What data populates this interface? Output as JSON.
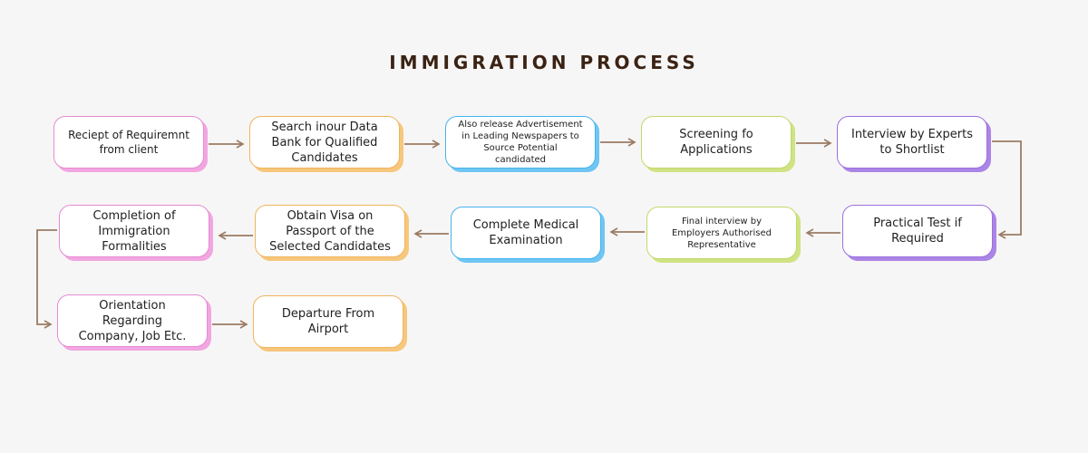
{
  "title": "IMMIGRATION PROCESS",
  "colors": {
    "background": "#f7f6f6",
    "title": "#3b2314",
    "connector": "#9a7b63",
    "pink": "#e58ad4",
    "orange": "#f1b45d",
    "blue": "#45b3ef",
    "green": "#bfd96b",
    "purple": "#9d6fe0"
  },
  "steps": [
    {
      "id": 1,
      "label": "Reciept of Requiremnt\nfrom client",
      "color": "pink"
    },
    {
      "id": 2,
      "label": "Search inour Data\nBank for Qualified\nCandidates",
      "color": "orange"
    },
    {
      "id": 3,
      "label": "Also release Advertisement\nin Leading Newspapers to\nSource Potential\ncandidated",
      "color": "blue"
    },
    {
      "id": 4,
      "label": "Screening fo\nApplications",
      "color": "green"
    },
    {
      "id": 5,
      "label": "Interview by Experts\nto Shortlist",
      "color": "purple"
    },
    {
      "id": 6,
      "label": "Practical Test if\nRequired",
      "color": "purple"
    },
    {
      "id": 7,
      "label": "Final interview by\nEmployers Authorised\nRepresentative",
      "color": "green"
    },
    {
      "id": 8,
      "label": "Complete Medical\nExamination",
      "color": "blue"
    },
    {
      "id": 9,
      "label": "Obtain Visa on\nPassport of the\nSelected Candidates",
      "color": "orange"
    },
    {
      "id": 10,
      "label": "Completion of\nImmigration\nFormalities",
      "color": "pink"
    },
    {
      "id": 11,
      "label": "Orientation\nRegarding\nCompany, Job Etc.",
      "color": "pink"
    },
    {
      "id": 12,
      "label": "Departure From\nAirport",
      "color": "orange"
    }
  ]
}
